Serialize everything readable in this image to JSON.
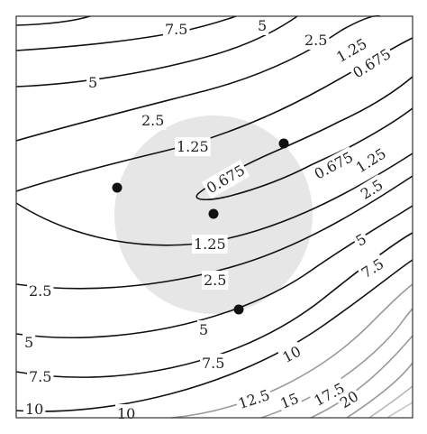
{
  "chart_data": {
    "type": "contour",
    "title": "",
    "xlabel": "",
    "ylabel": "",
    "grid": false,
    "legend": "none",
    "colors": {
      "contour_dark": "#111111",
      "contour_light": "#9a9a9a",
      "region_fill": "#e6e6e6",
      "point": "#111111"
    },
    "levels": [
      "0.675",
      "1.25",
      "2.5",
      "5",
      "7.5",
      "10",
      "12.5",
      "15",
      "17.5",
      "20"
    ],
    "highlighted_region": {
      "shape": "disk",
      "label": ""
    },
    "points": {
      "count": 4,
      "marker": "filled-circle"
    }
  }
}
